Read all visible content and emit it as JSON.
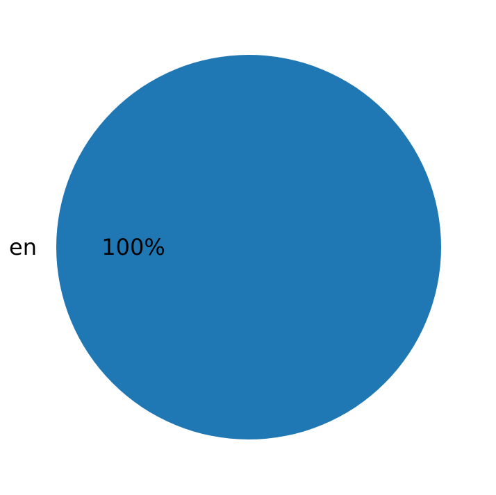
{
  "chart_data": {
    "type": "pie",
    "categories": [
      "en"
    ],
    "values": [
      100
    ],
    "data_labels": [
      "100%"
    ],
    "colors": [
      "#1f77b4"
    ],
    "title": "",
    "legend": "none"
  }
}
